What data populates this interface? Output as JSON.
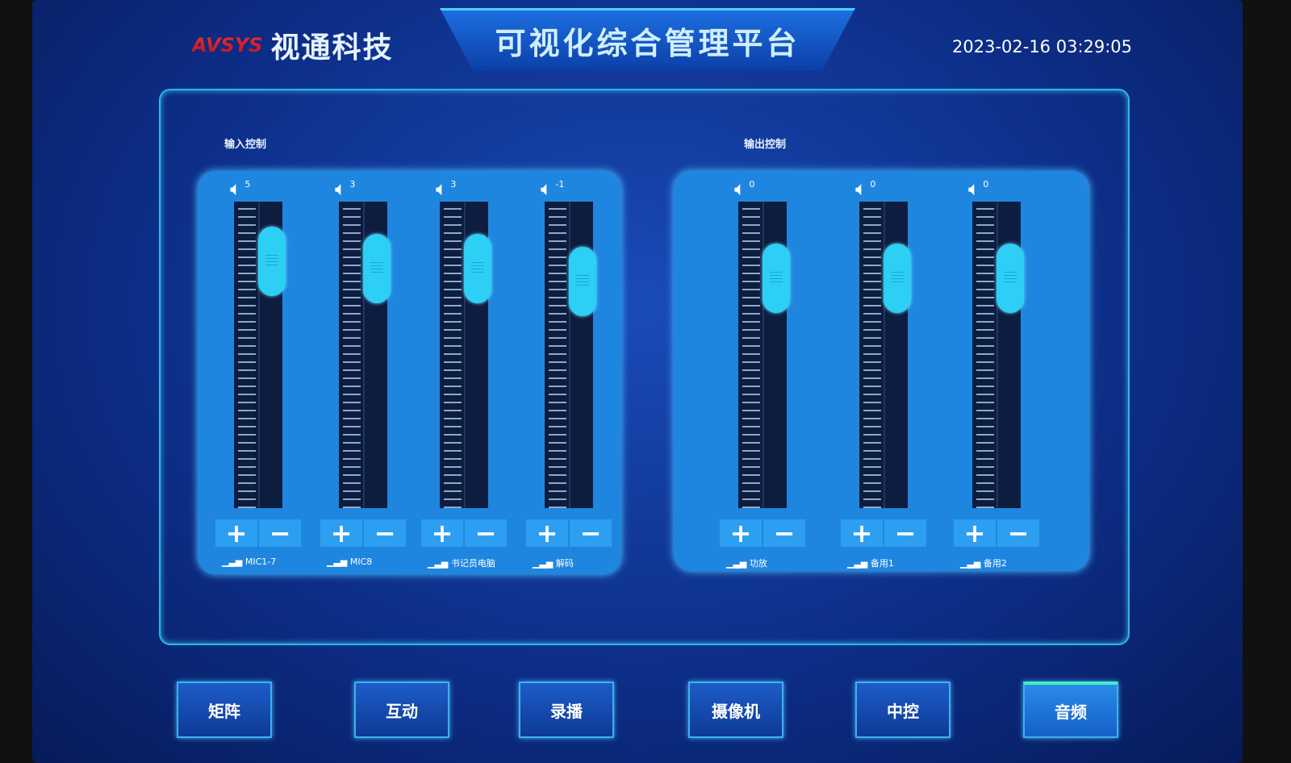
{
  "header": {
    "logo_mark": "AVSYS",
    "company": "视通科技",
    "title": "可视化综合管理平台",
    "datetime": "2023-02-16 03:29:05"
  },
  "input": {
    "title": "输入控制",
    "channels": [
      {
        "label": "MIC1-7",
        "value": 5
      },
      {
        "label": "MIC8",
        "value": 3
      },
      {
        "label": "书记员电脑",
        "value": 3
      },
      {
        "label": "解码",
        "value": -1
      }
    ]
  },
  "output": {
    "title": "输出控制",
    "channels": [
      {
        "label": "功放",
        "value": 0
      },
      {
        "label": "备用1",
        "value": 0
      },
      {
        "label": "备用2",
        "value": 0
      }
    ]
  },
  "fader_range": {
    "min": -80,
    "max": 10
  },
  "buttons": {
    "plus": "+",
    "minus": "−"
  },
  "nav": {
    "items": [
      {
        "label": "矩阵"
      },
      {
        "label": "互动"
      },
      {
        "label": "录播"
      },
      {
        "label": "摄像机"
      },
      {
        "label": "中控"
      },
      {
        "label": "音频"
      }
    ],
    "active": "音频"
  },
  "colors": {
    "accent": "#2ecff5",
    "panel": "#1f86e0",
    "frame": "#2fb5e8"
  }
}
